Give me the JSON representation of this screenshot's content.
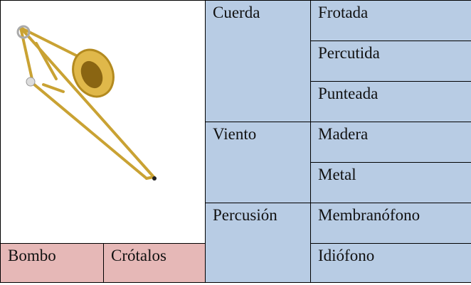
{
  "table": {
    "families": [
      {
        "name": "Cuerda",
        "types": [
          "Frotada",
          "Percutida",
          "Punteada"
        ]
      },
      {
        "name": "Viento",
        "types": [
          "Madera",
          "Metal"
        ]
      },
      {
        "name": "Percusión",
        "types": [
          "Membranófono",
          "Idiófono"
        ]
      }
    ],
    "bottom_row": [
      "Bombo",
      "Crótalos"
    ]
  }
}
